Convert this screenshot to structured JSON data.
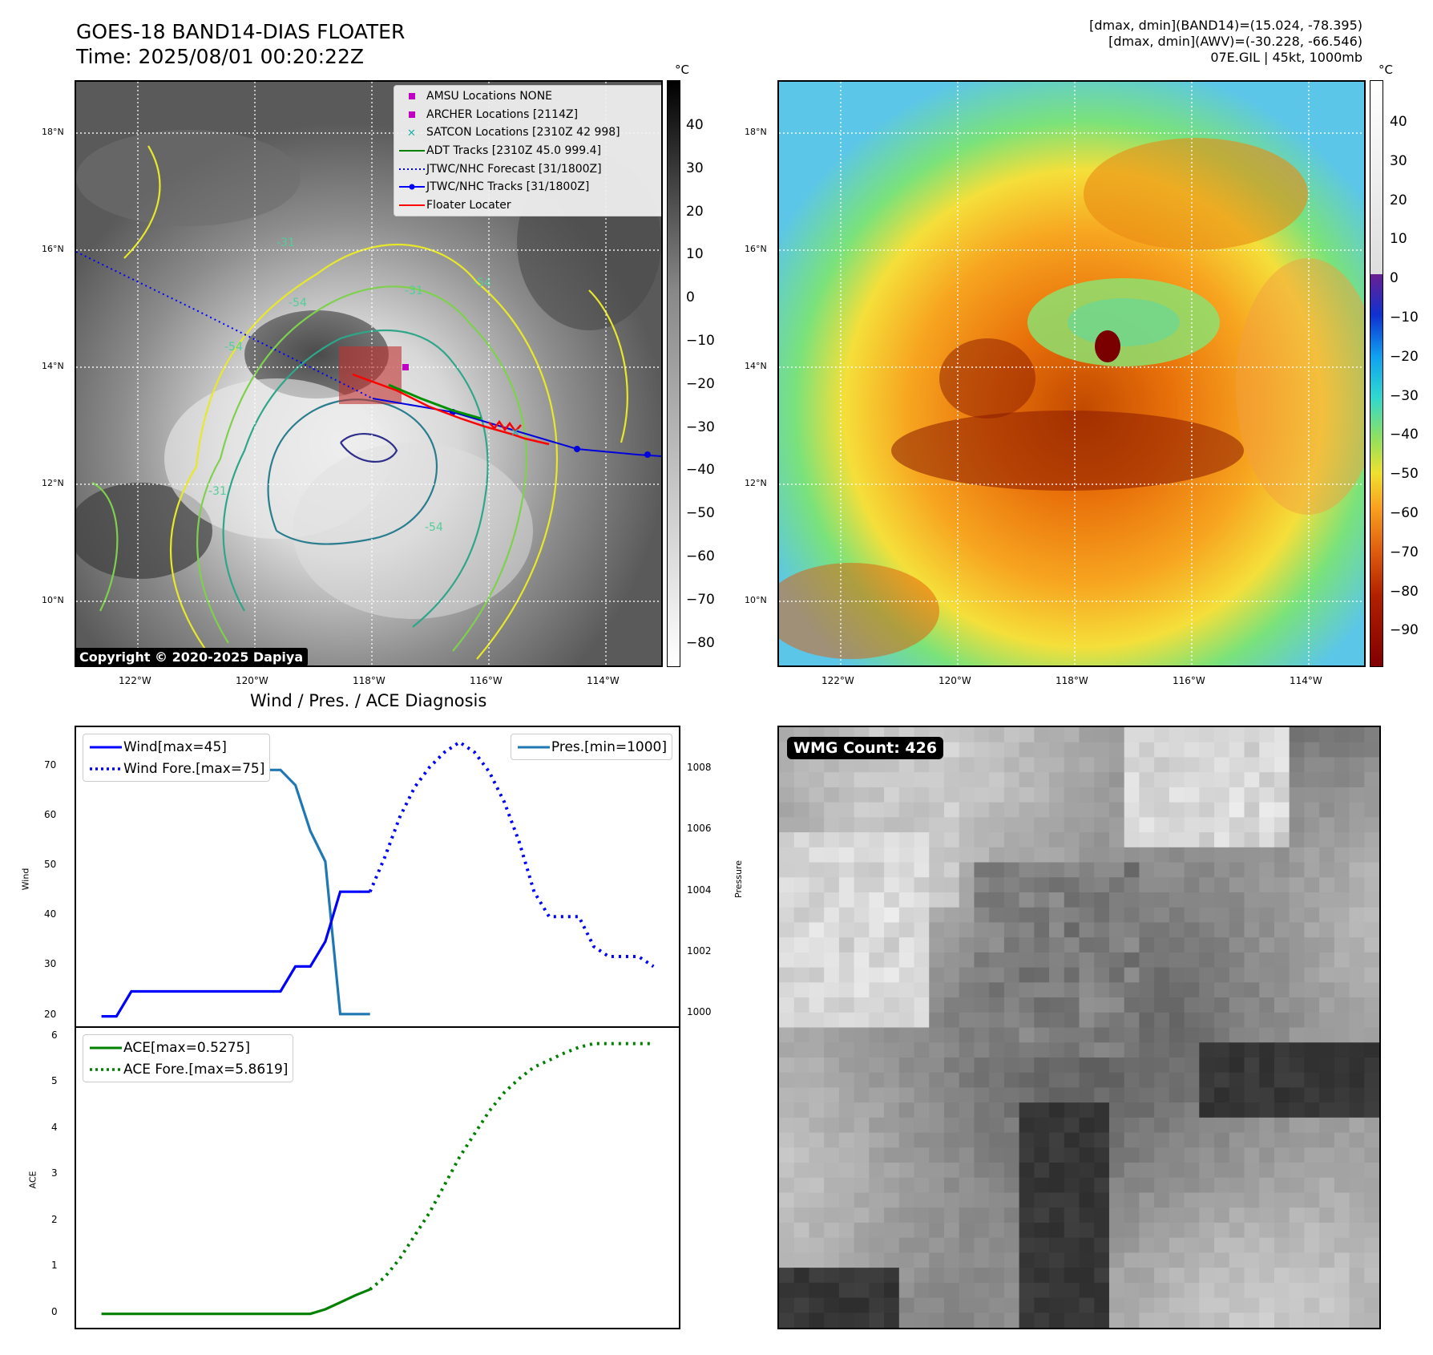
{
  "header": {
    "title_line1": "GOES-18 BAND14-DIAS FLOATER",
    "title_line2": "Time: 2025/08/01 00:20:22Z",
    "right_line1": "[dmax, dmin](BAND14)=(15.024, -78.395)",
    "right_line2": "[dmax, dmin](AWV)=(-30.228, -66.546)",
    "right_line3": "07E.GIL | 45kt, 1000mb"
  },
  "map": {
    "lat_labels": [
      "18°N",
      "16°N",
      "14°N",
      "12°N",
      "10°N"
    ],
    "lon_labels": [
      "122°W",
      "120°W",
      "118°W",
      "116°W",
      "114°W"
    ],
    "copyright": "Copyright © 2020-2025 Dapiya",
    "legend": [
      {
        "label": "AMSU Locations NONE",
        "kind": "square",
        "color": "#c000c0"
      },
      {
        "label": "ARCHER Locations [2114Z]",
        "kind": "square",
        "color": "#c000c0"
      },
      {
        "label": "SATCON Locations [2310Z 42 998]",
        "kind": "x",
        "color": "#20b2aa"
      },
      {
        "label": "ADT Tracks [2310Z 45.0 999.4]",
        "kind": "line",
        "color": "#008000"
      },
      {
        "label": "JTWC/NHC Forecast [31/1800Z]",
        "kind": "dotted",
        "color": "#0000ff"
      },
      {
        "label": "JTWC/NHC Tracks [31/1800Z]",
        "kind": "line-dot",
        "color": "#0000ff"
      },
      {
        "label": "Floater Locater",
        "kind": "line",
        "color": "#ff0000"
      }
    ],
    "contour_labels": [
      "-31",
      "-54",
      "-31",
      "-54",
      "-54",
      "-31",
      "-54"
    ],
    "colorbar_left": {
      "unit": "°C",
      "ticks": [
        "40",
        "30",
        "20",
        "10",
        "0",
        "−10",
        "−20",
        "−30",
        "−40",
        "−50",
        "−60",
        "−70",
        "−80"
      ]
    },
    "colorbar_right": {
      "unit": "°C",
      "ticks": [
        "40",
        "30",
        "20",
        "10",
        "0",
        "−10",
        "−20",
        "−30",
        "−40",
        "−50",
        "−60",
        "−70",
        "−80",
        "−90"
      ]
    }
  },
  "diagnosis": {
    "title": "Wind / Pres. / ACE Diagnosis",
    "wind_axis_label": "Wind",
    "pressure_axis_label": "Pressure",
    "ace_axis_label": "ACE",
    "wind_ticks": [
      "70",
      "60",
      "50",
      "40",
      "30",
      "20"
    ],
    "pressure_ticks": [
      "1008",
      "1006",
      "1004",
      "1002",
      "1000"
    ],
    "ace_ticks": [
      "6",
      "5",
      "4",
      "3",
      "2",
      "1",
      "0"
    ],
    "legend_wind": [
      {
        "label": "Wind[max=45]",
        "style": "solid",
        "color": "#0000ff"
      },
      {
        "label": "Wind Fore.[max=75]",
        "style": "dotted",
        "color": "#0000ff"
      }
    ],
    "legend_pres": [
      {
        "label": "Pres.[min=1000]",
        "style": "solid",
        "color": "#1f77b4"
      }
    ],
    "legend_ace": [
      {
        "label": "ACE[max=0.5275]",
        "style": "solid",
        "color": "#008000"
      },
      {
        "label": "ACE Fore.[max=5.8619]",
        "style": "dotted",
        "color": "#008000"
      }
    ]
  },
  "chart_data": [
    {
      "type": "line",
      "title": "Wind / Pres. / ACE Diagnosis",
      "ylabel": "Wind",
      "ylim": [
        18,
        78
      ],
      "x": [
        0,
        1,
        2,
        3,
        4,
        5,
        6,
        7,
        8,
        9,
        10,
        11,
        12,
        13,
        14,
        15,
        16,
        17,
        18,
        19,
        20,
        21,
        22,
        23,
        24,
        25,
        26,
        27,
        28,
        29,
        30,
        31,
        32,
        33,
        34,
        35,
        36,
        37
      ],
      "series": [
        {
          "name": "Wind[max=45]",
          "style": "solid",
          "x": [
            0,
            1,
            2,
            3,
            4,
            5,
            6,
            7,
            8,
            9,
            10,
            11,
            12,
            13,
            14,
            15,
            16,
            17,
            18
          ],
          "values": [
            20,
            20,
            25,
            25,
            25,
            25,
            25,
            25,
            25,
            25,
            25,
            25,
            25,
            30,
            30,
            35,
            45,
            45,
            45
          ]
        },
        {
          "name": "Wind Fore.[max=75]",
          "style": "dotted",
          "x": [
            18,
            19,
            20,
            21,
            22,
            23,
            24,
            25,
            26,
            27,
            28,
            29,
            30,
            31,
            32,
            33,
            34,
            35,
            36,
            37
          ],
          "values": [
            45,
            52,
            60,
            66,
            70,
            73,
            75,
            73,
            69,
            63,
            55,
            45,
            40,
            40,
            40,
            34,
            32,
            32,
            32,
            30
          ]
        }
      ]
    },
    {
      "type": "line",
      "ylabel": "Pressure",
      "ylim": [
        999.6,
        1009.4
      ],
      "series": [
        {
          "name": "Pres.[min=1000]",
          "style": "solid",
          "x": [
            0,
            1,
            2,
            3,
            4,
            5,
            6,
            7,
            8,
            9,
            10,
            11,
            12,
            13,
            14,
            15,
            16,
            17,
            18
          ],
          "values": [
            1009,
            1009,
            1009,
            1009,
            1009,
            1009,
            1009,
            1009,
            1009,
            1008.8,
            1008,
            1008,
            1008,
            1007.5,
            1006,
            1005,
            1000,
            1000,
            1000
          ]
        }
      ]
    },
    {
      "type": "line",
      "ylabel": "ACE",
      "ylim": [
        -0.3,
        6.2
      ],
      "series": [
        {
          "name": "ACE[max=0.5275]",
          "style": "solid",
          "x": [
            0,
            2,
            4,
            6,
            8,
            10,
            12,
            13,
            14,
            15,
            16,
            17,
            18
          ],
          "values": [
            0,
            0,
            0,
            0,
            0,
            0,
            0,
            0,
            0,
            0.1,
            0.25,
            0.4,
            0.53
          ]
        },
        {
          "name": "ACE Fore.[max=5.8619]",
          "style": "dotted",
          "x": [
            18,
            19,
            20,
            21,
            22,
            23,
            24,
            25,
            26,
            27,
            28,
            29,
            30,
            31,
            32,
            33,
            34,
            35,
            36,
            37
          ],
          "values": [
            0.53,
            0.8,
            1.2,
            1.7,
            2.2,
            2.8,
            3.4,
            3.9,
            4.4,
            4.8,
            5.1,
            5.35,
            5.5,
            5.65,
            5.78,
            5.86,
            5.86,
            5.86,
            5.86,
            5.86
          ]
        }
      ]
    }
  ],
  "wmg": {
    "label": "WMG Count: 426"
  }
}
